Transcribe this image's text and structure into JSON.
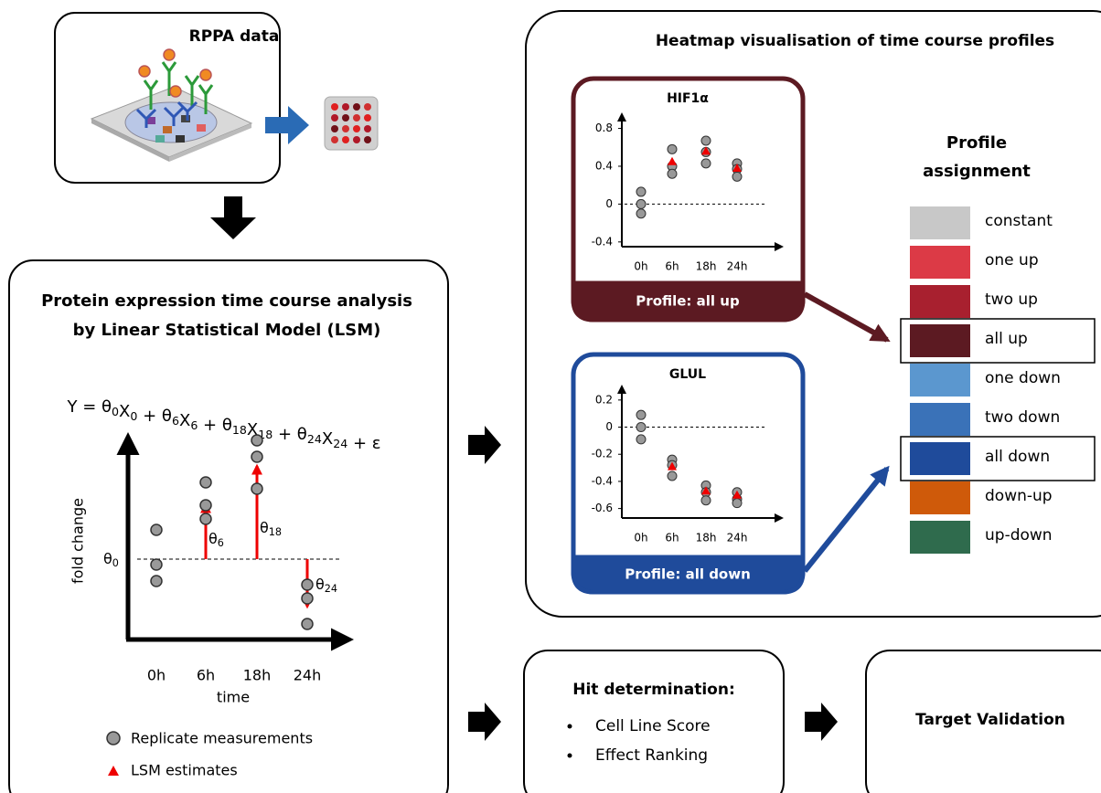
{
  "rppa": {
    "title": "RPPA data"
  },
  "lsm": {
    "title_lines": [
      "Protein expression time course analysis",
      "by Linear Statistical Model (LSM)"
    ],
    "equation": [
      {
        "t": "Y = θ",
        "s": "0"
      },
      {
        "t": "X",
        "s": "0"
      },
      {
        "t": " + θ",
        "s": "6"
      },
      {
        "t": "X",
        "s": "6"
      },
      {
        "t": " + θ",
        "s": "18"
      },
      {
        "t": "X",
        "s": "18"
      },
      {
        "t": " + θ",
        "s": "24"
      },
      {
        "t": "X",
        "s": "24"
      },
      {
        "t": " + ε"
      }
    ],
    "y_axis_label": "fold change",
    "x_axis_label": "time",
    "categories": [
      "0h",
      "6h",
      "18h",
      "24h"
    ],
    "theta_labels": [
      {
        "t": "θ",
        "s": "0"
      },
      {
        "t": "θ",
        "s": "6"
      },
      {
        "t": "θ",
        "s": "18"
      },
      {
        "t": "θ",
        "s": "24"
      }
    ],
    "legend": [
      "Replicate measurements",
      "LSM estimates"
    ]
  },
  "heatmap": {
    "title": "Heatmap visualisation of time course profiles",
    "panels": [
      {
        "title": "HIF1α",
        "footer": "Profile: all up",
        "color": "#5c1a22",
        "categories": [
          "0h",
          "6h",
          "18h",
          "24h"
        ],
        "ylim": [
          -0.45,
          0.95
        ],
        "yticks": [
          -0.4,
          0,
          0.4,
          0.8
        ],
        "reference_line": 0,
        "replicates": [
          [
            0.13,
            0,
            -0.1
          ],
          [
            0.58,
            0.4,
            0.32
          ],
          [
            0.67,
            0.55,
            0.43
          ],
          [
            0.43,
            0.37,
            0.29
          ]
        ],
        "estimates": [
          null,
          0.45,
          0.56,
          0.38
        ]
      },
      {
        "title": "GLUL",
        "footer": "Profile: all down",
        "color": "#1f4b9b",
        "categories": [
          "0h",
          "6h",
          "18h",
          "24h"
        ],
        "ylim": [
          -0.67,
          0.3
        ],
        "yticks": [
          -0.6,
          -0.4,
          -0.2,
          0,
          0.2
        ],
        "reference_line": 0,
        "replicates": [
          [
            0.09,
            0,
            -0.09
          ],
          [
            -0.24,
            -0.28,
            -0.36
          ],
          [
            -0.43,
            -0.48,
            -0.54
          ],
          [
            -0.48,
            -0.53,
            -0.56
          ]
        ],
        "estimates": [
          null,
          -0.29,
          -0.47,
          -0.5
        ]
      }
    ],
    "profile_title_lines": [
      "Profile",
      "assignment"
    ],
    "profiles": [
      {
        "label": "constant",
        "color": "#c8c8c8",
        "highlighted": false
      },
      {
        "label": "one up",
        "color": "#dc3a46",
        "highlighted": false
      },
      {
        "label": "two up",
        "color": "#a8202f",
        "highlighted": false
      },
      {
        "label": "all up",
        "color": "#5c1a22",
        "highlighted": true
      },
      {
        "label": "one down",
        "color": "#5b97cf",
        "highlighted": false
      },
      {
        "label": "two down",
        "color": "#3a72b8",
        "highlighted": false
      },
      {
        "label": "all down",
        "color": "#1f4b9b",
        "highlighted": true
      },
      {
        "label": "down-up",
        "color": "#cf5a0a",
        "highlighted": false
      },
      {
        "label": "up-down",
        "color": "#2f6b4d",
        "highlighted": false
      }
    ]
  },
  "hit": {
    "title": "Hit determination:",
    "items": [
      "Cell Line Score",
      "Effect Ranking"
    ]
  },
  "target": {
    "title": "Target Validation"
  }
}
